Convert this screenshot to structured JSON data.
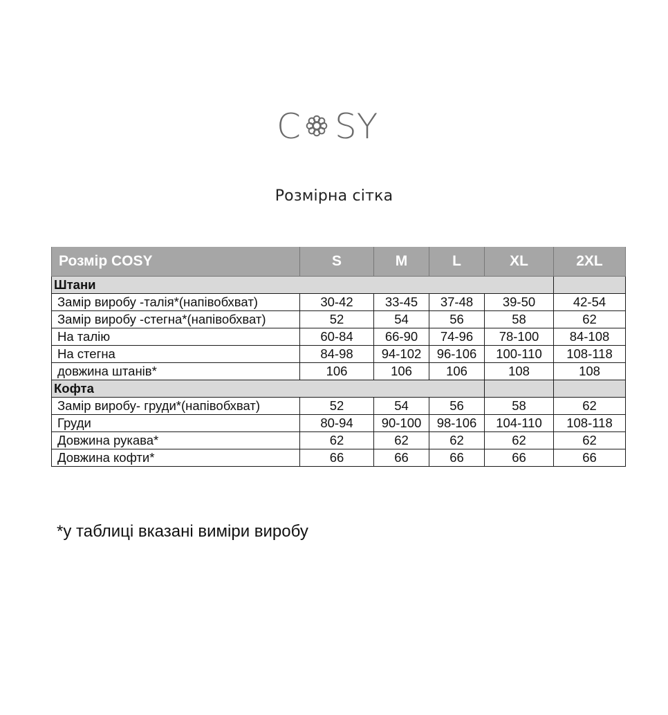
{
  "logo": {
    "text_left": "C",
    "text_right": "SY",
    "full": "COSY",
    "color": "#6b6b6b"
  },
  "title": "Розмірна сітка",
  "table": {
    "header": {
      "label": "Розмір COSY",
      "sizes": [
        "S",
        "M",
        "L",
        "XL",
        "2XL"
      ]
    },
    "sections": [
      {
        "name": "Штани",
        "rows": [
          {
            "label": "Замір виробу -талія*(напівобхват)",
            "values": [
              "30-42",
              "33-45",
              "37-48",
              "39-50",
              "42-54"
            ]
          },
          {
            "label": "Замір виробу -стегна*(напівобхват)",
            "values": [
              "52",
              "54",
              "56",
              "58",
              "62"
            ]
          },
          {
            "label": "На талію",
            "values": [
              "60-84",
              "66-90",
              "74-96",
              "78-100",
              "84-108"
            ]
          },
          {
            "label": "На стегна",
            "values": [
              "84-98",
              "94-102",
              "96-106",
              "100-110",
              "108-118"
            ]
          },
          {
            "label": "довжина штанів*",
            "values": [
              "106",
              "106",
              "106",
              "108",
              "108"
            ]
          }
        ]
      },
      {
        "name": "Кофта",
        "rows": [
          {
            "label": "Замір виробу- груди*(напівобхват)",
            "values": [
              "52",
              "54",
              "56",
              "58",
              "62"
            ]
          },
          {
            "label": "Груди",
            "values": [
              "80-94",
              "90-100",
              "98-106",
              "104-110",
              "108-118"
            ]
          },
          {
            "label": "Довжина рукава*",
            "values": [
              "62",
              "62",
              "62",
              "62",
              "62"
            ]
          },
          {
            "label": "Довжина кофти*",
            "values": [
              "66",
              "66",
              "66",
              "66",
              "66"
            ]
          }
        ]
      }
    ],
    "colors": {
      "header_bg": "#a6a6a6",
      "section_bg": "#d9d9d9"
    }
  },
  "footnote": "*у таблиці вказані виміри виробу"
}
